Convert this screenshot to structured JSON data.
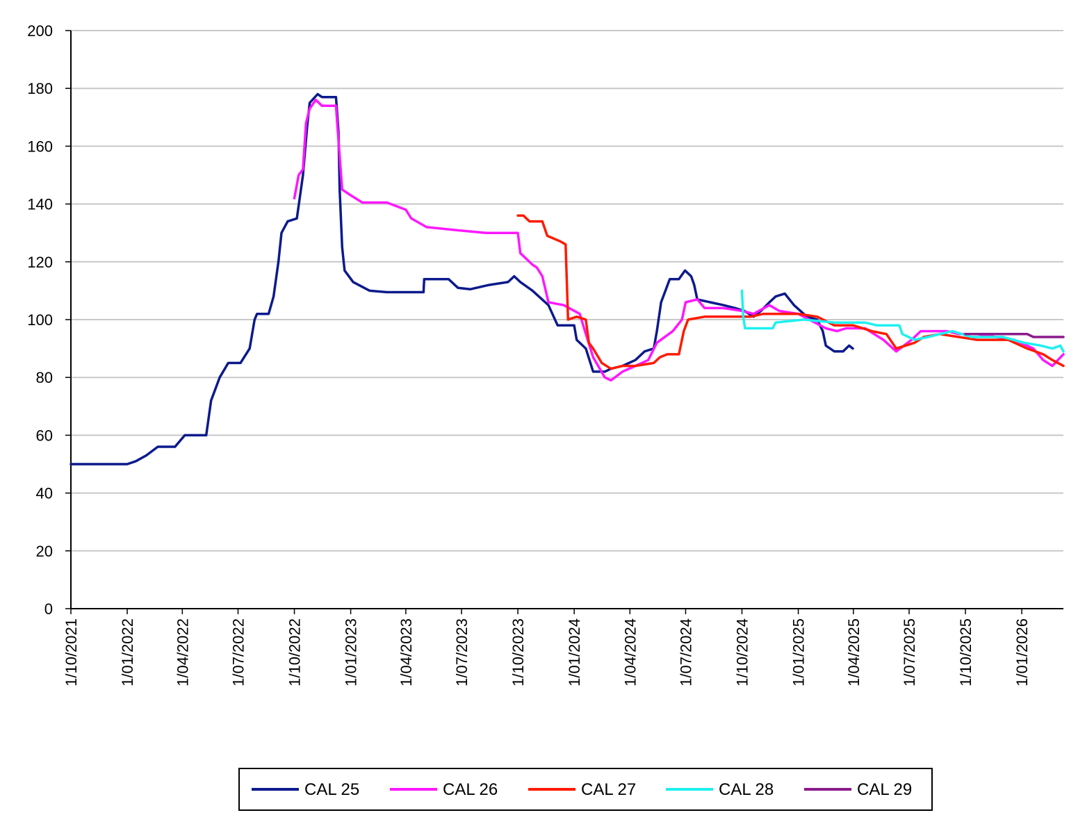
{
  "chart_data": {
    "type": "line",
    "title": "",
    "xlabel": "",
    "ylabel": "",
    "ylim": [
      0,
      200
    ],
    "yticks": [
      0,
      20,
      40,
      60,
      80,
      100,
      120,
      140,
      160,
      180,
      200
    ],
    "xlim": [
      "2021-10-01",
      "2026-03-10"
    ],
    "xtick_labels": [
      "1/10/2021",
      "1/01/2022",
      "1/04/2022",
      "1/07/2022",
      "1/10/2022",
      "1/01/2023",
      "1/04/2023",
      "1/07/2023",
      "1/10/2023",
      "1/01/2024",
      "1/04/2024",
      "1/07/2024",
      "1/10/2024",
      "1/01/2025",
      "1/04/2025",
      "1/07/2025",
      "1/10/2025",
      "1/01/2026"
    ],
    "xtick_dates": [
      "2021-10-01",
      "2022-01-01",
      "2022-04-01",
      "2022-07-01",
      "2022-10-01",
      "2023-01-01",
      "2023-04-01",
      "2023-07-01",
      "2023-10-01",
      "2024-01-01",
      "2024-04-01",
      "2024-07-01",
      "2024-10-01",
      "2025-01-01",
      "2025-04-01",
      "2025-07-01",
      "2025-10-01",
      "2026-01-01"
    ],
    "grid": true,
    "legend_position": "bottom",
    "series": [
      {
        "name": "CAL 25",
        "color": "#0c1a8c",
        "points": [
          [
            "2021-10-01",
            50
          ],
          [
            "2022-01-01",
            50
          ],
          [
            "2022-01-15",
            51
          ],
          [
            "2022-02-01",
            53
          ],
          [
            "2022-02-20",
            56
          ],
          [
            "2022-03-20",
            56
          ],
          [
            "2022-04-05",
            60
          ],
          [
            "2022-05-10",
            60
          ],
          [
            "2022-05-18",
            72
          ],
          [
            "2022-06-01",
            80
          ],
          [
            "2022-06-15",
            85
          ],
          [
            "2022-07-05",
            85
          ],
          [
            "2022-07-20",
            90
          ],
          [
            "2022-07-28",
            100
          ],
          [
            "2022-08-01",
            102
          ],
          [
            "2022-08-20",
            102
          ],
          [
            "2022-08-28",
            108
          ],
          [
            "2022-09-05",
            120
          ],
          [
            "2022-09-10",
            130
          ],
          [
            "2022-09-20",
            134
          ],
          [
            "2022-10-05",
            135
          ],
          [
            "2022-10-15",
            150
          ],
          [
            "2022-10-22",
            167
          ],
          [
            "2022-10-26",
            175
          ],
          [
            "2022-11-08",
            178
          ],
          [
            "2022-11-15",
            177
          ],
          [
            "2022-12-08",
            177
          ],
          [
            "2022-12-12",
            165
          ],
          [
            "2022-12-14",
            145
          ],
          [
            "2022-12-18",
            125
          ],
          [
            "2022-12-22",
            117
          ],
          [
            "2023-01-05",
            113
          ],
          [
            "2023-02-01",
            110
          ],
          [
            "2023-03-01",
            109.5
          ],
          [
            "2023-04-30",
            109.5
          ],
          [
            "2023-05-01",
            114
          ],
          [
            "2023-06-10",
            114
          ],
          [
            "2023-06-25",
            111
          ],
          [
            "2023-07-15",
            110.5
          ],
          [
            "2023-08-15",
            112
          ],
          [
            "2023-09-15",
            113
          ],
          [
            "2023-09-25",
            115
          ],
          [
            "2023-10-05",
            113
          ],
          [
            "2023-10-25",
            110
          ],
          [
            "2023-11-20",
            105
          ],
          [
            "2023-12-05",
            98
          ],
          [
            "2024-01-01",
            98
          ],
          [
            "2024-01-05",
            93
          ],
          [
            "2024-01-20",
            90
          ],
          [
            "2024-02-01",
            82
          ],
          [
            "2024-02-20",
            82
          ],
          [
            "2024-03-01",
            83
          ],
          [
            "2024-03-20",
            84
          ],
          [
            "2024-04-10",
            86
          ],
          [
            "2024-04-25",
            89
          ],
          [
            "2024-05-10",
            90
          ],
          [
            "2024-05-15",
            96
          ],
          [
            "2024-05-22",
            106
          ],
          [
            "2024-06-05",
            114
          ],
          [
            "2024-06-20",
            114
          ],
          [
            "2024-06-30",
            117
          ],
          [
            "2024-07-10",
            115
          ],
          [
            "2024-07-15",
            112
          ],
          [
            "2024-07-20",
            107
          ],
          [
            "2024-08-10",
            106
          ],
          [
            "2024-09-01",
            105
          ],
          [
            "2024-09-20",
            104
          ],
          [
            "2024-10-05",
            103
          ],
          [
            "2024-10-20",
            101
          ],
          [
            "2024-11-01",
            103
          ],
          [
            "2024-11-15",
            106
          ],
          [
            "2024-11-25",
            108
          ],
          [
            "2024-12-10",
            109
          ],
          [
            "2024-12-25",
            105
          ],
          [
            "2025-01-15",
            101
          ],
          [
            "2025-02-01",
            100
          ],
          [
            "2025-02-10",
            96
          ],
          [
            "2025-02-15",
            91
          ],
          [
            "2025-03-01",
            89
          ],
          [
            "2025-03-15",
            89
          ],
          [
            "2025-03-25",
            91
          ],
          [
            "2025-03-31",
            90
          ]
        ]
      },
      {
        "name": "CAL 26",
        "color": "#ff17ff",
        "points": [
          [
            "2022-10-01",
            142
          ],
          [
            "2022-10-08",
            150
          ],
          [
            "2022-10-15",
            152
          ],
          [
            "2022-10-20",
            168
          ],
          [
            "2022-10-26",
            173
          ],
          [
            "2022-11-05",
            176
          ],
          [
            "2022-11-15",
            174
          ],
          [
            "2022-12-08",
            174
          ],
          [
            "2022-12-12",
            162
          ],
          [
            "2022-12-18",
            145
          ],
          [
            "2023-01-01",
            143
          ],
          [
            "2023-01-20",
            140.5
          ],
          [
            "2023-03-01",
            140.5
          ],
          [
            "2023-04-01",
            138
          ],
          [
            "2023-04-10",
            135
          ],
          [
            "2023-05-05",
            132
          ],
          [
            "2023-06-20",
            131
          ],
          [
            "2023-08-10",
            130
          ],
          [
            "2023-10-01",
            130
          ],
          [
            "2023-10-05",
            123
          ],
          [
            "2023-10-25",
            119
          ],
          [
            "2023-11-01",
            118
          ],
          [
            "2023-11-10",
            115
          ],
          [
            "2023-11-20",
            106
          ],
          [
            "2023-12-15",
            105
          ],
          [
            "2024-01-10",
            102
          ],
          [
            "2024-01-20",
            95
          ],
          [
            "2024-02-01",
            87
          ],
          [
            "2024-02-20",
            80
          ],
          [
            "2024-03-01",
            79
          ],
          [
            "2024-03-20",
            82
          ],
          [
            "2024-04-10",
            84
          ],
          [
            "2024-05-01",
            86
          ],
          [
            "2024-05-15",
            92
          ],
          [
            "2024-06-10",
            96
          ],
          [
            "2024-06-25",
            100
          ],
          [
            "2024-07-01",
            106
          ],
          [
            "2024-07-20",
            107
          ],
          [
            "2024-08-01",
            104
          ],
          [
            "2024-09-01",
            104
          ],
          [
            "2024-10-01",
            103
          ],
          [
            "2024-10-20",
            102
          ],
          [
            "2024-11-15",
            105
          ],
          [
            "2024-12-01",
            103
          ],
          [
            "2025-01-01",
            102
          ],
          [
            "2025-02-15",
            97
          ],
          [
            "2025-03-05",
            96
          ],
          [
            "2025-03-20",
            97
          ],
          [
            "2025-04-20",
            97
          ],
          [
            "2025-05-20",
            93
          ],
          [
            "2025-06-10",
            89
          ],
          [
            "2025-07-05",
            93
          ],
          [
            "2025-07-20",
            96
          ],
          [
            "2025-09-01",
            96
          ],
          [
            "2025-09-20",
            95
          ],
          [
            "2025-10-20",
            95
          ],
          [
            "2025-12-20",
            93
          ],
          [
            "2026-01-20",
            90
          ],
          [
            "2026-02-05",
            86
          ],
          [
            "2026-02-20",
            84
          ],
          [
            "2026-03-01",
            86
          ],
          [
            "2026-03-10",
            88
          ]
        ]
      },
      {
        "name": "CAL 27",
        "color": "#ff1a00",
        "points": [
          [
            "2023-10-01",
            136
          ],
          [
            "2023-10-10",
            136
          ],
          [
            "2023-10-20",
            134
          ],
          [
            "2023-11-10",
            134
          ],
          [
            "2023-11-18",
            129
          ],
          [
            "2023-12-10",
            127
          ],
          [
            "2023-12-18",
            126
          ],
          [
            "2023-12-22",
            100
          ],
          [
            "2024-01-05",
            101
          ],
          [
            "2024-01-20",
            100
          ],
          [
            "2024-01-25",
            92
          ],
          [
            "2024-02-01",
            90
          ],
          [
            "2024-02-15",
            85
          ],
          [
            "2024-03-01",
            83
          ],
          [
            "2024-03-20",
            84
          ],
          [
            "2024-04-10",
            84
          ],
          [
            "2024-05-10",
            85
          ],
          [
            "2024-05-20",
            87
          ],
          [
            "2024-06-01",
            88
          ],
          [
            "2024-06-20",
            88
          ],
          [
            "2024-06-28",
            96
          ],
          [
            "2024-07-05",
            100
          ],
          [
            "2024-08-01",
            101
          ],
          [
            "2024-10-01",
            101
          ],
          [
            "2024-10-15",
            101
          ],
          [
            "2024-11-05",
            102
          ],
          [
            "2025-01-01",
            102
          ],
          [
            "2025-02-01",
            101
          ],
          [
            "2025-03-01",
            98
          ],
          [
            "2025-04-01",
            98
          ],
          [
            "2025-05-01",
            96
          ],
          [
            "2025-05-25",
            95
          ],
          [
            "2025-06-10",
            90
          ],
          [
            "2025-07-10",
            92
          ],
          [
            "2025-07-25",
            94
          ],
          [
            "2025-08-20",
            95
          ],
          [
            "2025-09-20",
            94
          ],
          [
            "2025-10-20",
            93
          ],
          [
            "2025-12-10",
            93
          ],
          [
            "2026-01-10",
            90
          ],
          [
            "2026-02-05",
            88
          ],
          [
            "2026-02-20",
            86
          ],
          [
            "2026-03-01",
            85
          ],
          [
            "2026-03-10",
            84
          ]
        ]
      },
      {
        "name": "CAL 28",
        "color": "#1ef0f0",
        "points": [
          [
            "2024-10-01",
            110
          ],
          [
            "2024-10-03",
            101
          ],
          [
            "2024-10-06",
            97
          ],
          [
            "2024-11-20",
            97
          ],
          [
            "2024-11-25",
            99
          ],
          [
            "2025-01-10",
            100
          ],
          [
            "2025-03-01",
            99
          ],
          [
            "2025-04-20",
            99
          ],
          [
            "2025-05-10",
            98
          ],
          [
            "2025-06-15",
            98
          ],
          [
            "2025-06-20",
            95
          ],
          [
            "2025-07-10",
            93
          ],
          [
            "2025-08-01",
            94
          ],
          [
            "2025-08-20",
            95
          ],
          [
            "2025-09-10",
            96
          ],
          [
            "2025-10-10",
            94
          ],
          [
            "2025-12-01",
            94
          ],
          [
            "2026-01-05",
            92
          ],
          [
            "2026-02-01",
            91
          ],
          [
            "2026-02-20",
            90
          ],
          [
            "2026-03-05",
            91
          ],
          [
            "2026-03-10",
            89
          ]
        ]
      },
      {
        "name": "CAL 29",
        "color": "#8b1a8b",
        "points": [
          [
            "2025-10-01",
            95
          ],
          [
            "2025-12-01",
            95
          ],
          [
            "2026-01-10",
            95
          ],
          [
            "2026-01-20",
            94
          ],
          [
            "2026-03-10",
            94
          ]
        ]
      }
    ]
  }
}
